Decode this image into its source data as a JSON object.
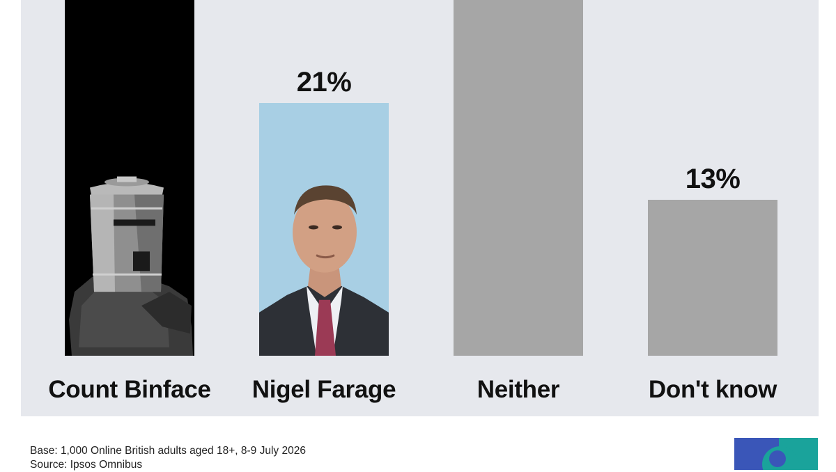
{
  "chart_data": {
    "type": "bar",
    "categories": [
      "Count Binface",
      "Nigel Farage",
      "Neither",
      "Don't know"
    ],
    "values": [
      null,
      21,
      null,
      13
    ],
    "value_labels": [
      "",
      "21%",
      "",
      "13%"
    ],
    "title": "",
    "xlabel": "",
    "ylabel": "",
    "unit": "%",
    "ylim": [
      0,
      40
    ],
    "grid": false,
    "legend": "none"
  },
  "colors": {
    "panel_background": "#e6e8ed",
    "bar_count_binface": "#000000",
    "bar_nigel_farage": "#a8cfe4",
    "bar_neutral": "#a6a6a6",
    "text": "#111111"
  },
  "bar_images": [
    "count-binface-photo",
    "nigel-farage-photo",
    "",
    ""
  ],
  "footnote": {
    "base": "Base: 1,000 Online British adults aged 18+, 8-9 July 2026",
    "source": "Source: Ipsos Omnibus"
  },
  "logo": {
    "name": "ipsos-logo",
    "colors": [
      "#3a56b8",
      "#1aa39b",
      "#ffffff"
    ]
  }
}
